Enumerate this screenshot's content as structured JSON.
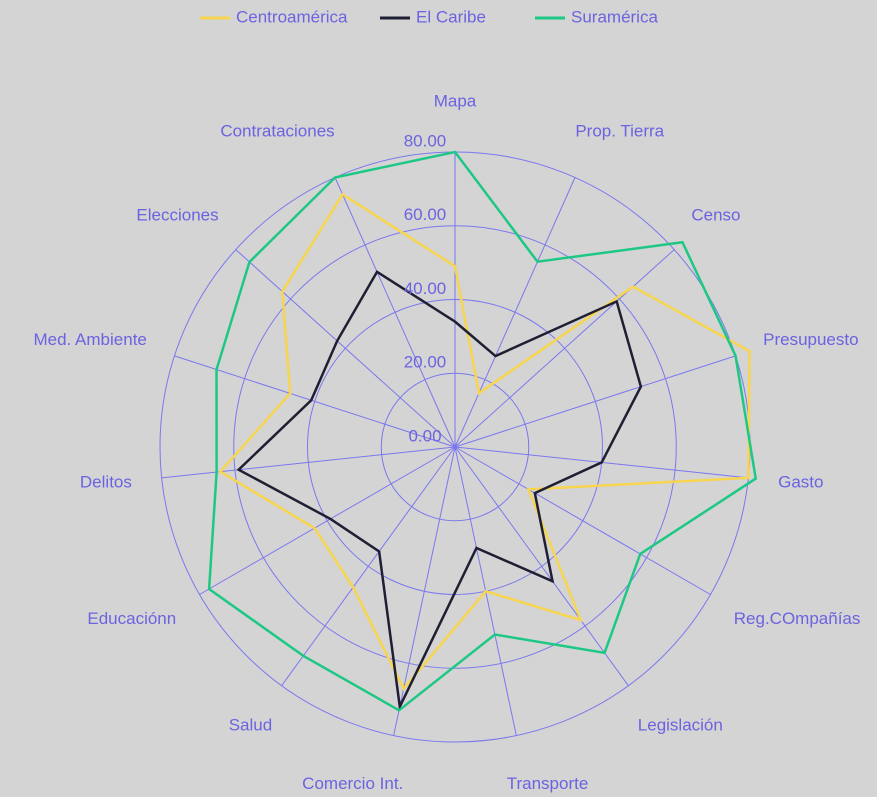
{
  "chart_data": {
    "type": "radar",
    "categories": [
      "Mapa",
      "Prop. Tierra",
      "Censo",
      "Presupuesto",
      "Gasto",
      "Reg.COmpañías",
      "Legislación",
      "Transporte",
      "Comercio Int.",
      "Salud",
      "Educaciónn",
      "Delitos",
      "Med. Ambiente",
      "Elecciones",
      "Contrataciones"
    ],
    "series": [
      {
        "name": "Centroamérica",
        "color": "#f7d54e",
        "values": [
          49,
          16,
          65,
          84,
          80,
          23,
          58,
          40,
          67,
          47,
          44,
          64,
          47,
          63,
          75
        ]
      },
      {
        "name": "El Caribe",
        "color": "#1f1f33",
        "values": [
          34,
          27,
          59,
          53,
          40,
          25,
          45,
          28,
          72,
          35,
          39,
          59,
          41,
          43,
          52
        ]
      },
      {
        "name": "Suramérica",
        "color": "#1dc884",
        "values": [
          80,
          55,
          83,
          80,
          82,
          58,
          69,
          52,
          73,
          70,
          77,
          65,
          68,
          75,
          80
        ]
      }
    ],
    "ylim": [
      0,
      80
    ],
    "yticks": [
      {
        "value": 0,
        "label": "0.00"
      },
      {
        "value": 20,
        "label": "20.00"
      },
      {
        "value": 40,
        "label": "40.00"
      },
      {
        "value": 60,
        "label": "60.00"
      },
      {
        "value": 80,
        "label": "80.00"
      }
    ],
    "grid": true,
    "legend": "top"
  }
}
